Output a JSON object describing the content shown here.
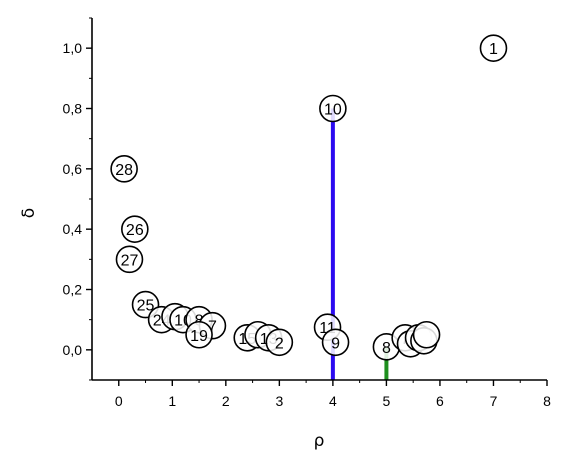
{
  "chart_data": {
    "type": "scatter",
    "xlabel": "ρ",
    "ylabel": "δ",
    "xlim": [
      -0.5,
      8
    ],
    "ylim": [
      -0.1,
      1.1
    ],
    "x_ticks": [
      0,
      1,
      2,
      3,
      4,
      5,
      6,
      7,
      8
    ],
    "x_tick_labels": [
      "0",
      "1",
      "2",
      "3",
      "4",
      "5",
      "6",
      "7",
      "8"
    ],
    "y_ticks": [
      0.0,
      0.2,
      0.4,
      0.6,
      0.8,
      1.0
    ],
    "y_tick_labels": [
      "0,0",
      "0,2",
      "0,4",
      "0,6",
      "0,8",
      "1,0"
    ],
    "grid": false,
    "points": [
      {
        "x": 7.0,
        "y": 1.0,
        "label": "1"
      },
      {
        "x": 4.0,
        "y": 0.8,
        "label": "10"
      },
      {
        "x": 0.1,
        "y": 0.6,
        "label": "28"
      },
      {
        "x": 0.3,
        "y": 0.4,
        "label": "26"
      },
      {
        "x": 0.2,
        "y": 0.3,
        "label": "27"
      },
      {
        "x": 0.5,
        "y": 0.15,
        "label": "25"
      },
      {
        "x": 0.8,
        "y": 0.1,
        "label": "24"
      },
      {
        "x": 1.05,
        "y": 0.11,
        "label": ""
      },
      {
        "x": 1.2,
        "y": 0.1,
        "label": "10"
      },
      {
        "x": 1.5,
        "y": 0.1,
        "label": "8"
      },
      {
        "x": 1.75,
        "y": 0.08,
        "label": "7"
      },
      {
        "x": 1.5,
        "y": 0.05,
        "label": "19"
      },
      {
        "x": 2.4,
        "y": 0.04,
        "label": "15"
      },
      {
        "x": 2.6,
        "y": 0.05,
        "label": ""
      },
      {
        "x": 2.8,
        "y": 0.04,
        "label": "13"
      },
      {
        "x": 3.0,
        "y": 0.025,
        "label": "2"
      },
      {
        "x": 3.9,
        "y": 0.075,
        "label": "11"
      },
      {
        "x": 4.05,
        "y": 0.025,
        "label": "9"
      },
      {
        "x": 5.0,
        "y": 0.01,
        "label": "8"
      },
      {
        "x": 5.35,
        "y": 0.04,
        "label": "7"
      },
      {
        "x": 5.45,
        "y": 0.02,
        "label": ""
      },
      {
        "x": 5.6,
        "y": 0.04,
        "label": ""
      },
      {
        "x": 5.7,
        "y": 0.03,
        "label": ""
      },
      {
        "x": 5.75,
        "y": 0.05,
        "label": ""
      }
    ],
    "stems": [
      {
        "x": 4.0,
        "y": 0.8,
        "color": "#2b0af0"
      },
      {
        "x": 5.0,
        "y": 0.01,
        "color": "#1e8f1e"
      }
    ]
  }
}
